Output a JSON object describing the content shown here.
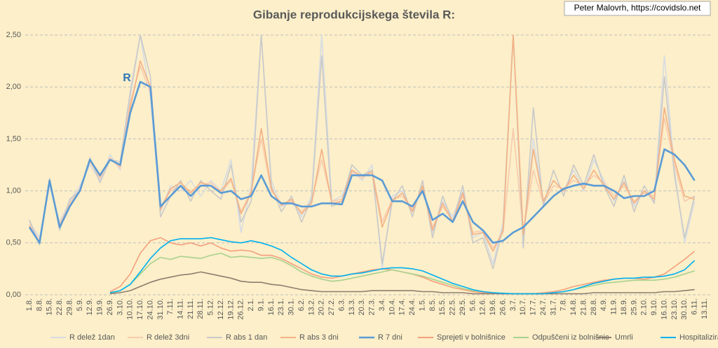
{
  "chart_data": {
    "type": "line",
    "title": "Gibanje reprodukcijskega števila R:",
    "credit": "Peter Malovrh, https://covidslo.net",
    "annotation": "R",
    "categories": [
      "1.8.",
      "8.8.",
      "15.8.",
      "22.8.",
      "29.8.",
      "5.9.",
      "12.9.",
      "19.9.",
      "26.9.",
      "3.10.",
      "10.10.",
      "17.10.",
      "24.10.",
      "31.10.",
      "7.11.",
      "14.11.",
      "21.11.",
      "28.11.",
      "5.12.",
      "12.12.",
      "19.12.",
      "26.12.",
      "2.1.",
      "9.1.",
      "16.1.",
      "23.1.",
      "30.1.",
      "6.2.",
      "13.2.",
      "20.2.",
      "27.2.",
      "6.3.",
      "13.3.",
      "20.3.",
      "27.3.",
      "3.4.",
      "10.4.",
      "17.4.",
      "24.4.",
      "1.5.",
      "8.5.",
      "15.5.",
      "22.5.",
      "29.5.",
      "5.6.",
      "12.6.",
      "19.6.",
      "26.6.",
      "3.7.",
      "10.7.",
      "17.7.",
      "24.7.",
      "31.7.",
      "7.8.",
      "14.8.",
      "21.8.",
      "28.8.",
      "4.9.",
      "11.9.",
      "18.9.",
      "25.9.",
      "2.10.",
      "9.10.",
      "16.10.",
      "23.10.",
      "30.10.",
      "6.11.",
      "13.11."
    ],
    "ylim": [
      0,
      2.5
    ],
    "yticks": [
      {
        "value": 0,
        "label": "0,00"
      },
      {
        "value": 0.5,
        "label": "0,50"
      },
      {
        "value": 1,
        "label": "1,00"
      },
      {
        "value": 1.5,
        "label": "1,50"
      },
      {
        "value": 2,
        "label": "2,00"
      },
      {
        "value": 2.5,
        "label": "2,50"
      }
    ],
    "grid": true,
    "legend": "bottom",
    "series": [
      {
        "name": "R delež 1dan",
        "color": "#d6dce4",
        "values": [
          0.7,
          0.55,
          1.05,
          0.7,
          0.9,
          1.05,
          1.25,
          1.1,
          1.35,
          1.2,
          1.9,
          2.5,
          1.9,
          0.8,
          1.05,
          1.0,
          1.1,
          0.95,
          1.1,
          1.0,
          1.3,
          0.6,
          1.05,
          2.5,
          1.1,
          0.85,
          0.9,
          0.75,
          0.95,
          2.5,
          0.9,
          0.95,
          1.2,
          1.1,
          1.25,
          0.25,
          0.95,
          1.0,
          0.8,
          1.05,
          0.6,
          0.9,
          0.75,
          1.0,
          0.55,
          0.6,
          0.3,
          0.7,
          2.5,
          0.5,
          1.5,
          0.9,
          1.1,
          1.0,
          1.2,
          1.0,
          1.3,
          1.1,
          0.9,
          1.1,
          0.85,
          1.0,
          0.9,
          2.3,
          1.2,
          0.5,
          0.9,
          null
        ]
      },
      {
        "name": "R delež 3dni",
        "color": "#f8cbad",
        "values": [
          0.68,
          0.52,
          1.08,
          0.68,
          0.88,
          1.02,
          1.28,
          1.12,
          1.32,
          1.22,
          1.85,
          2.2,
          1.95,
          0.85,
          1.0,
          1.05,
          1.0,
          1.05,
          1.08,
          0.98,
          1.1,
          0.8,
          1.0,
          1.5,
          1.0,
          0.88,
          0.9,
          0.8,
          0.9,
          1.3,
          0.9,
          0.92,
          1.18,
          1.12,
          1.2,
          0.7,
          0.92,
          0.95,
          0.82,
          1.02,
          0.65,
          0.85,
          0.72,
          0.95,
          0.6,
          0.62,
          0.45,
          0.6,
          1.6,
          0.6,
          1.2,
          0.88,
          1.05,
          1.02,
          1.1,
          1.05,
          1.15,
          1.08,
          0.95,
          1.05,
          0.9,
          0.98,
          0.95,
          1.7,
          1.25,
          0.9,
          0.95,
          null
        ]
      },
      {
        "name": "R abs 1 dan",
        "color": "#c9c9c9",
        "values": [
          0.72,
          0.48,
          1.12,
          0.62,
          0.92,
          1.0,
          1.32,
          1.08,
          1.3,
          1.28,
          1.95,
          2.5,
          2.1,
          0.75,
          0.95,
          1.1,
          0.9,
          1.1,
          1.0,
          0.92,
          1.25,
          0.7,
          0.9,
          2.5,
          1.05,
          0.8,
          0.95,
          0.7,
          0.92,
          2.3,
          0.85,
          0.9,
          1.25,
          1.15,
          1.2,
          0.3,
          0.9,
          1.05,
          0.75,
          1.1,
          0.55,
          0.95,
          0.7,
          1.05,
          0.5,
          0.55,
          0.25,
          0.65,
          2.5,
          0.45,
          1.8,
          0.85,
          1.2,
          0.95,
          1.25,
          1.05,
          1.35,
          1.05,
          0.85,
          1.15,
          0.8,
          1.05,
          0.88,
          2.1,
          1.15,
          0.55,
          0.95,
          null
        ]
      },
      {
        "name": "R abs 3 dni",
        "color": "#f4b183",
        "values": [
          0.66,
          0.5,
          1.1,
          0.66,
          0.86,
          1.0,
          1.3,
          1.14,
          1.3,
          1.24,
          1.8,
          2.25,
          2.0,
          0.82,
          1.02,
          1.08,
          0.98,
          1.08,
          1.05,
          1.0,
          1.12,
          0.78,
          0.98,
          1.6,
          1.02,
          0.86,
          0.92,
          0.78,
          0.88,
          1.4,
          0.88,
          0.9,
          1.2,
          1.14,
          1.18,
          0.65,
          0.9,
          0.98,
          0.8,
          1.05,
          0.62,
          0.88,
          0.7,
          0.98,
          0.58,
          0.6,
          0.42,
          0.62,
          2.5,
          0.58,
          1.4,
          0.9,
          1.1,
          1.0,
          1.15,
          1.02,
          1.2,
          1.05,
          0.92,
          1.08,
          0.88,
          1.0,
          0.92,
          1.8,
          1.3,
          0.95,
          0.92,
          null
        ]
      },
      {
        "name": "R 7 dni",
        "color": "#5b9bd5",
        "values": [
          0.65,
          0.5,
          1.1,
          0.65,
          0.85,
          1.0,
          1.3,
          1.15,
          1.3,
          1.25,
          1.75,
          2.05,
          2.0,
          0.85,
          0.95,
          1.05,
          0.95,
          1.05,
          1.05,
          0.98,
          1.0,
          0.92,
          0.95,
          1.15,
          0.95,
          0.88,
          0.88,
          0.85,
          0.85,
          0.88,
          0.88,
          0.87,
          1.15,
          1.15,
          1.15,
          1.1,
          0.9,
          0.9,
          0.85,
          1.0,
          0.72,
          0.78,
          0.7,
          0.9,
          0.7,
          0.62,
          0.5,
          0.52,
          0.6,
          0.65,
          0.75,
          0.85,
          0.95,
          1.02,
          1.05,
          1.07,
          1.05,
          1.05,
          1.0,
          0.93,
          0.95,
          0.95,
          1.0,
          1.4,
          1.35,
          1.25,
          1.1,
          null
        ]
      },
      {
        "name": "Sprejeti v bolnišnice",
        "color": "#f4a07e",
        "values": [
          null,
          null,
          null,
          null,
          null,
          null,
          null,
          null,
          0.03,
          0.08,
          0.2,
          0.4,
          0.52,
          0.55,
          0.5,
          0.48,
          0.5,
          0.47,
          0.5,
          0.45,
          0.42,
          0.43,
          0.42,
          0.38,
          0.38,
          0.35,
          0.3,
          0.25,
          0.2,
          0.17,
          0.16,
          0.18,
          0.2,
          0.22,
          0.24,
          0.25,
          0.24,
          0.22,
          0.2,
          0.17,
          0.13,
          0.1,
          0.07,
          0.05,
          0.03,
          0.02,
          0.015,
          0.01,
          0.01,
          0.01,
          0.01,
          0.02,
          0.03,
          0.05,
          0.08,
          0.1,
          0.12,
          0.14,
          0.15,
          0.16,
          0.16,
          0.15,
          0.17,
          0.2,
          0.27,
          0.34,
          0.42,
          null
        ]
      },
      {
        "name": "Odpuščeni iz bolnišnic",
        "color": "#a9d18e",
        "values": [
          null,
          null,
          null,
          null,
          null,
          null,
          null,
          null,
          0.01,
          0.04,
          0.1,
          0.2,
          0.3,
          0.36,
          0.34,
          0.37,
          0.36,
          0.35,
          0.38,
          0.4,
          0.36,
          0.37,
          0.36,
          0.35,
          0.36,
          0.33,
          0.28,
          0.22,
          0.18,
          0.15,
          0.13,
          0.14,
          0.16,
          0.18,
          0.2,
          0.22,
          0.24,
          0.22,
          0.2,
          0.18,
          0.15,
          0.12,
          0.09,
          0.06,
          0.04,
          0.03,
          0.02,
          0.01,
          0.01,
          0.01,
          0.01,
          0.01,
          0.02,
          0.03,
          0.05,
          0.07,
          0.09,
          0.11,
          0.12,
          0.13,
          0.14,
          0.14,
          0.14,
          0.15,
          0.17,
          0.2,
          0.23,
          null
        ]
      },
      {
        "name": "Umrli",
        "color": "#8c7e6e",
        "values": [
          null,
          null,
          null,
          null,
          null,
          null,
          null,
          null,
          0.01,
          0.02,
          0.04,
          0.08,
          0.12,
          0.15,
          0.17,
          0.19,
          0.2,
          0.22,
          0.2,
          0.18,
          0.16,
          0.13,
          0.12,
          0.12,
          0.1,
          0.09,
          0.07,
          0.05,
          0.04,
          0.03,
          0.03,
          0.03,
          0.03,
          0.03,
          0.04,
          0.04,
          0.04,
          0.04,
          0.04,
          0.03,
          0.03,
          0.02,
          0.02,
          0.02,
          0.01,
          0.01,
          0.01,
          0.01,
          0.01,
          0.01,
          0.01,
          0.01,
          0.01,
          0.01,
          0.01,
          0.01,
          0.02,
          0.02,
          0.02,
          0.02,
          0.02,
          0.02,
          0.02,
          0.03,
          0.03,
          0.04,
          0.05,
          null
        ]
      },
      {
        "name": "Hospitalizirani",
        "color": "#00b0f0",
        "values": [
          null,
          null,
          null,
          null,
          null,
          null,
          null,
          null,
          0.02,
          0.04,
          0.1,
          0.22,
          0.35,
          0.45,
          0.52,
          0.54,
          0.54,
          0.54,
          0.55,
          0.53,
          0.51,
          0.5,
          0.52,
          0.5,
          0.47,
          0.43,
          0.36,
          0.3,
          0.24,
          0.2,
          0.18,
          0.18,
          0.2,
          0.21,
          0.23,
          0.25,
          0.26,
          0.26,
          0.25,
          0.23,
          0.19,
          0.15,
          0.11,
          0.08,
          0.05,
          0.03,
          0.02,
          0.015,
          0.01,
          0.01,
          0.01,
          0.01,
          0.02,
          0.03,
          0.05,
          0.08,
          0.11,
          0.13,
          0.15,
          0.16,
          0.16,
          0.17,
          0.17,
          0.18,
          0.2,
          0.24,
          0.33,
          null
        ]
      }
    ]
  }
}
